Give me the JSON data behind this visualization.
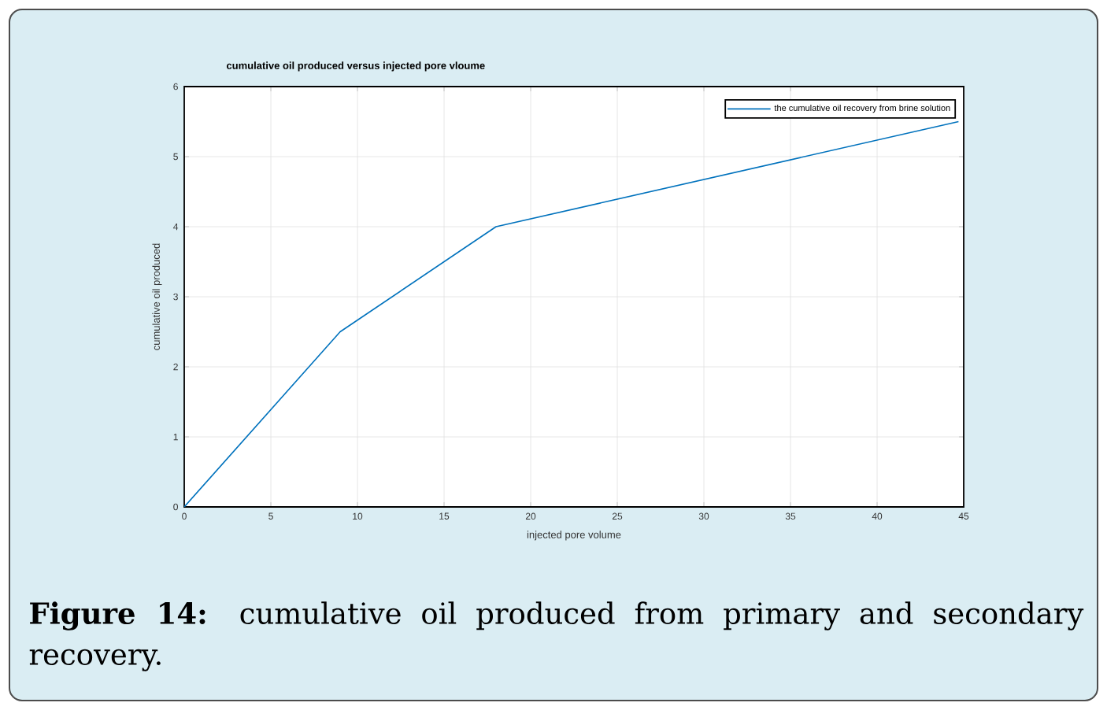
{
  "chart_data": {
    "type": "line",
    "title": "cumulative oil produced versus injected pore vloume",
    "xlabel": "injected pore volume",
    "ylabel": "cumulative oil produced",
    "x": [
      0,
      9,
      18,
      44.7
    ],
    "series": [
      {
        "name": "the cumulative oil recovery from brine solution",
        "color": "#0072bd",
        "values": [
          0,
          2.5,
          4,
          5.5
        ]
      }
    ],
    "xlim": [
      0,
      45
    ],
    "xticks": [
      0,
      5,
      10,
      15,
      20,
      25,
      30,
      35,
      40,
      45
    ],
    "ylim": [
      0,
      6
    ],
    "yticks": [
      0,
      1,
      2,
      3,
      4,
      5,
      6
    ],
    "grid": true,
    "legend": "top right",
    "marker": "none",
    "line_style": "solid",
    "annotations": [
      "**Figure 14:** cumulative oil produced from primary and secondary recovery."
    ]
  }
}
